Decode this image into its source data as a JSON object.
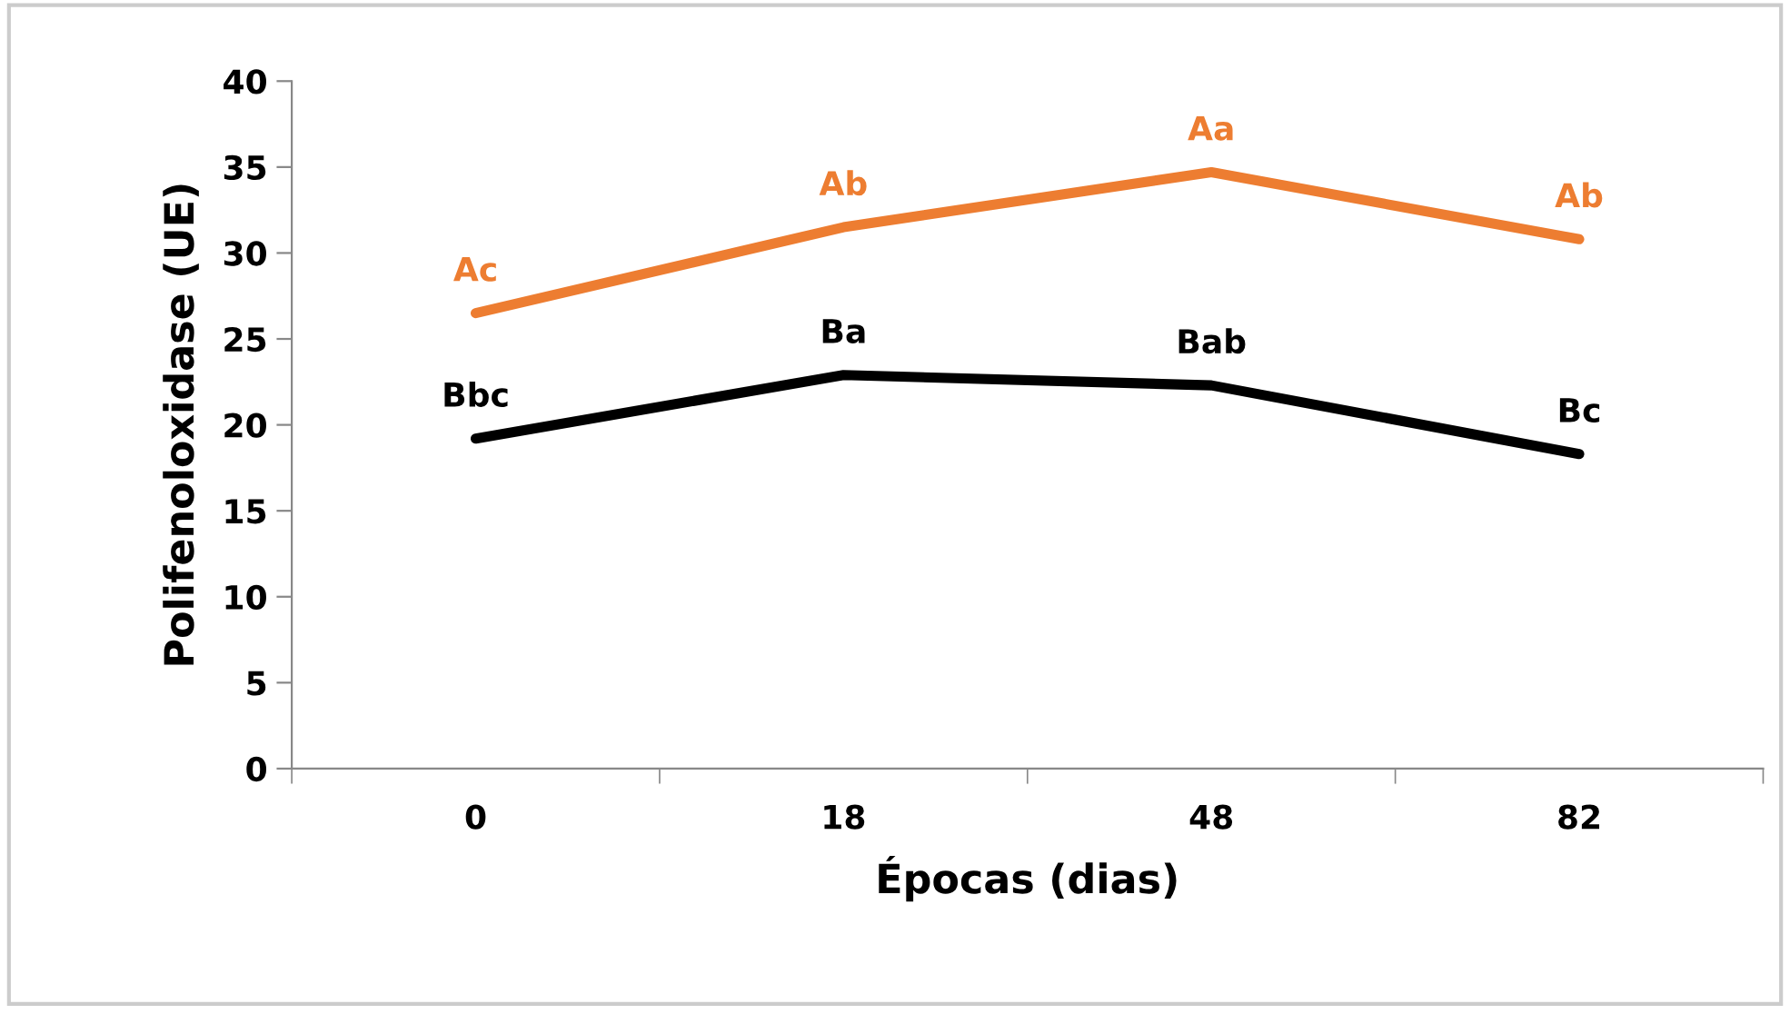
{
  "chart_data": {
    "type": "line",
    "xlabel": "Épocas (dias)",
    "ylabel": "Polifenoloxidase (UE)",
    "categories": [
      "0",
      "18",
      "48",
      "82"
    ],
    "series": [
      {
        "color": "#ed7d31",
        "values": [
          26.5,
          31.5,
          34.7,
          30.8
        ],
        "value_labels": [
          "Ac",
          "Ab",
          "Aa",
          "Ab"
        ]
      },
      {
        "color": "#000000",
        "values": [
          19.2,
          22.9,
          22.3,
          18.3
        ],
        "value_labels": [
          "Bbc",
          "Ba",
          "Bab",
          "Bc"
        ]
      }
    ],
    "ylim": [
      0,
      40
    ],
    "yticks": [
      0,
      5,
      10,
      15,
      20,
      25,
      30,
      35,
      40
    ],
    "grid": false,
    "legend": false,
    "marker": "none",
    "line_style": "solid"
  }
}
